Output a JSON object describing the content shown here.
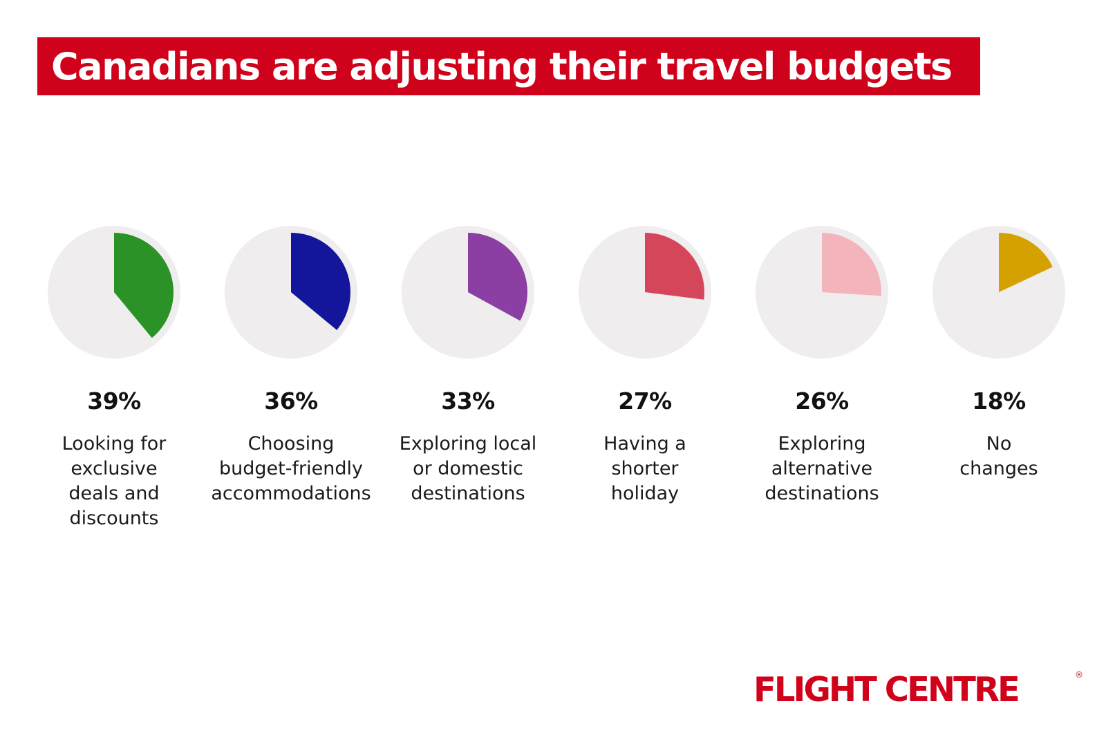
{
  "title": "Canadians are adjusting their travel budgets",
  "colors": {
    "title_bg": "#d0021b",
    "pie_bg": "#efeded",
    "brand": "#d0021b"
  },
  "chart_data": {
    "type": "pie",
    "title": "Canadians are adjusting their travel budgets",
    "unit": "%",
    "items": [
      {
        "label": "Looking for\nexclusive\ndeals and\ndiscounts",
        "value": 39,
        "display": "39%",
        "color": "#2a9226"
      },
      {
        "label": "Choosing\nbudget-friendly\naccommodations",
        "value": 36,
        "display": "36%",
        "color": "#13169a"
      },
      {
        "label": "Exploring local\nor domestic\ndestinations",
        "value": 33,
        "display": "33%",
        "color": "#8b3fa3"
      },
      {
        "label": "Having a\nshorter\nholiday",
        "value": 27,
        "display": "27%",
        "color": "#d6465b"
      },
      {
        "label": "Exploring\nalternative\ndestinations",
        "value": 26,
        "display": "26%",
        "color": "#f4b4bc"
      },
      {
        "label": "No\nchanges",
        "value": 18,
        "display": "18%",
        "color": "#d4a100"
      }
    ]
  },
  "logo": {
    "text": "FLIGHT CENTRE",
    "reg_mark": "®"
  }
}
